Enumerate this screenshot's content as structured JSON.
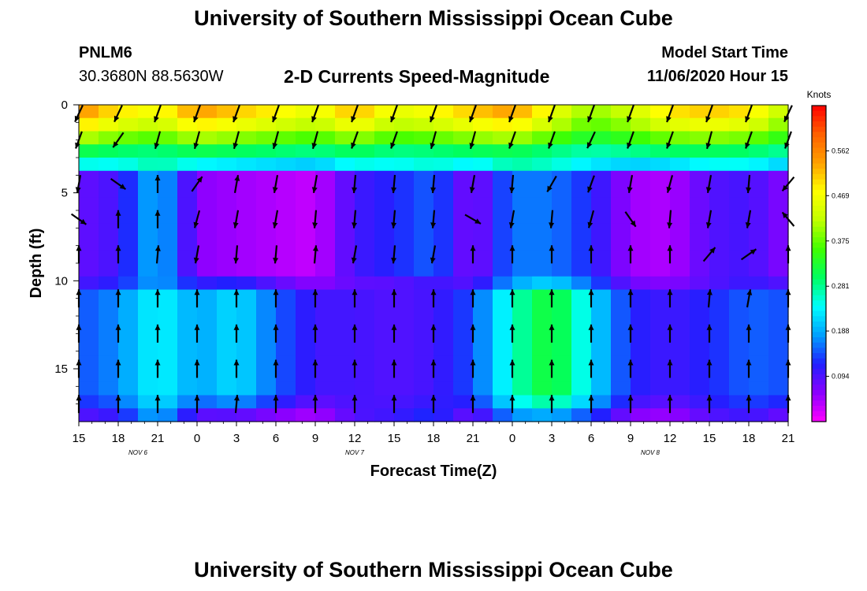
{
  "header": {
    "title": "University of Southern Mississippi Ocean Cube",
    "station_id": "PNLM6",
    "coordinates": "30.3680N 88.5630W",
    "subtitle": "2-D Currents Speed-Magnitude",
    "model_start_label": "Model Start Time",
    "model_start_value": "11/06/2020 Hour 15"
  },
  "footer": {
    "title": "University of Southern Mississippi Ocean Cube"
  },
  "chart_data": {
    "type": "heatmap",
    "title": "2-D Currents Speed-Magnitude",
    "xlabel": "Forecast Time(Z)",
    "ylabel": "Depth (ft)",
    "x_tick_labels": [
      "15",
      "18",
      "21",
      "0",
      "3",
      "6",
      "9",
      "12",
      "15",
      "18",
      "21",
      "0",
      "3",
      "6",
      "9",
      "12",
      "15",
      "18",
      "21"
    ],
    "x_range_hours": [
      0,
      54
    ],
    "date_labels": [
      {
        "label": "NOV  6",
        "hour": 4.5
      },
      {
        "label": "NOV  7",
        "hour": 21
      },
      {
        "label": "NOV  8",
        "hour": 43.5
      }
    ],
    "y_tick_labels": [
      "0",
      "5",
      "10",
      "15"
    ],
    "y_ticks": [
      0,
      5,
      10,
      15
    ],
    "ylim": [
      0,
      18
    ],
    "colorbar": {
      "unit": "Knots",
      "tick_labels": [
        "0.562",
        "0.469",
        "0.375",
        "0.281",
        "0.188",
        "0.094"
      ],
      "ticks": [
        0.562,
        0.469,
        0.375,
        0.281,
        0.188,
        0.094
      ],
      "range": [
        0,
        0.656
      ]
    },
    "colormap": [
      "#ff00ff",
      "#8b00ff",
      "#2020ff",
      "#00a0ff",
      "#00ffff",
      "#00ff60",
      "#40ff00",
      "#c0ff00",
      "#ffff00",
      "#ffa000",
      "#ff6000",
      "#ff0000"
    ],
    "depth_bins": [
      0,
      0.75,
      1.5,
      2.25,
      3,
      3.75,
      4.5,
      5.25,
      6,
      6.75,
      7.5,
      8.25,
      9,
      9.75,
      10.5,
      11.25,
      12,
      12.75,
      13.5,
      14.25,
      15,
      15.75,
      16.5,
      17.25,
      18
    ],
    "profiles": {
      "surface_speed": [
        0.56,
        0.5,
        0.47,
        0.55,
        0.52,
        0.49,
        0.46,
        0.53,
        0.46,
        0.48,
        0.52,
        0.55,
        0.47,
        0.4,
        0.44,
        0.5,
        0.52,
        0.5,
        0.42
      ],
      "mid_speed": [
        0.08,
        0.1,
        0.2,
        0.06,
        0.05,
        0.04,
        0.03,
        0.1,
        0.12,
        0.15,
        0.06,
        0.16,
        0.16,
        0.12,
        0.05,
        0.04,
        0.09,
        0.1,
        0.06
      ],
      "deep_speed": [
        0.14,
        0.17,
        0.24,
        0.18,
        0.22,
        0.15,
        0.1,
        0.1,
        0.09,
        0.1,
        0.14,
        0.26,
        0.33,
        0.22,
        0.12,
        0.1,
        0.12,
        0.15,
        0.14
      ]
    },
    "arrow_depths_ft": [
      0.5,
      2.0,
      4.5,
      6.5,
      8.5,
      11,
      13,
      15,
      17
    ],
    "arrow_direction_deg": [
      [
        -155,
        -155,
        -160,
        -160,
        -160,
        -160,
        -160,
        -160,
        -160,
        -160,
        -160,
        -160,
        -160,
        -160,
        -160,
        -160,
        -160,
        -160,
        -155
      ],
      [
        -160,
        -145,
        -165,
        -165,
        -165,
        -165,
        -165,
        -160,
        -160,
        -165,
        -165,
        -160,
        -160,
        -155,
        -160,
        -160,
        -165,
        -160,
        -160
      ],
      [
        -170,
        125,
        0,
        35,
        10,
        -170,
        -170,
        -175,
        -175,
        -175,
        -170,
        -175,
        -150,
        -160,
        -170,
        -165,
        -170,
        -175,
        -140
      ],
      [
        125,
        0,
        0,
        -165,
        -170,
        -170,
        -175,
        -175,
        -175,
        -175,
        120,
        -170,
        -175,
        -165,
        145,
        -175,
        -170,
        -170,
        -40
      ],
      [
        0,
        0,
        5,
        -170,
        -175,
        -175,
        5,
        -170,
        -175,
        -170,
        0,
        0,
        0,
        0,
        0,
        0,
        40,
        55,
        0
      ],
      [
        0,
        0,
        0,
        0,
        0,
        0,
        0,
        0,
        0,
        0,
        0,
        0,
        0,
        0,
        0,
        0,
        5,
        10,
        0
      ],
      [
        0,
        0,
        0,
        0,
        0,
        0,
        0,
        0,
        0,
        0,
        0,
        0,
        0,
        0,
        0,
        0,
        0,
        0,
        0
      ],
      [
        0,
        0,
        0,
        0,
        0,
        0,
        0,
        0,
        0,
        0,
        0,
        0,
        0,
        0,
        0,
        0,
        0,
        0,
        0
      ],
      [
        0,
        0,
        0,
        0,
        5,
        0,
        0,
        0,
        0,
        0,
        0,
        0,
        0,
        0,
        0,
        0,
        0,
        0,
        0
      ]
    ]
  }
}
